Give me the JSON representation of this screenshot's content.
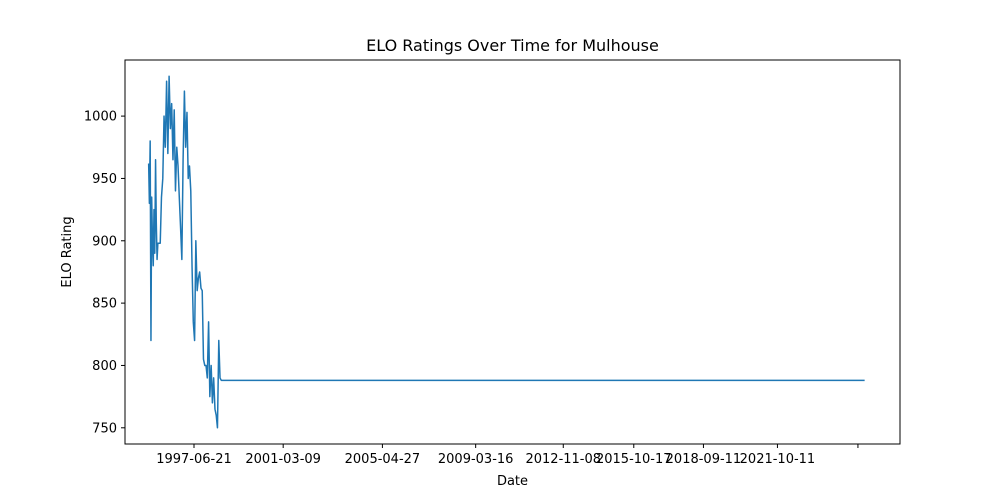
{
  "chart_data": {
    "type": "line",
    "title": "ELO Ratings Over Time for Mulhouse",
    "xlabel": "Date",
    "ylabel": "ELO Rating",
    "x_axis_type": "date",
    "xlim": [
      "1994-08-06",
      "2026-11-19"
    ],
    "ylim": [
      737,
      1045
    ],
    "x_ticks": [
      "1997-06-21",
      "2001-03-09",
      "2005-04-27",
      "2009-03-16",
      "2012-11-08",
      "2015-10-17",
      "2018-09-11",
      "2021-10-11",
      "2025-02-17"
    ],
    "x_tick_labels": [
      "1997-06-21",
      "2001-03-09",
      "2005-04-27",
      "2009-03-16",
      "2012-11-08",
      "2015-10-17",
      "2018-09-11",
      "2021-10-11",
      ""
    ],
    "y_ticks": [
      750,
      800,
      850,
      900,
      950,
      1000
    ],
    "grid": false,
    "legend": "none",
    "series": [
      {
        "color": "#1f77b4",
        "x": [
          "1995-08-01",
          "1995-08-12",
          "1995-08-24",
          "1995-09-05",
          "1995-09-16",
          "1995-09-28",
          "1995-10-10",
          "1995-10-21",
          "1995-11-02",
          "1995-11-14",
          "1995-11-25",
          "1995-12-07",
          "1995-12-19",
          "1996-01-04",
          "1996-01-24",
          "1996-02-12",
          "1996-03-03",
          "1996-03-22",
          "1996-04-10",
          "1996-04-30",
          "1996-05-19",
          "1996-06-07",
          "1996-06-27",
          "1996-07-16",
          "1996-08-05",
          "1996-08-24",
          "1996-09-12",
          "1996-10-02",
          "1996-10-21",
          "1996-11-09",
          "1996-11-29",
          "1996-12-18",
          "1997-01-06",
          "1997-01-26",
          "1997-02-14",
          "1997-03-06",
          "1997-03-25",
          "1997-04-13",
          "1997-05-03",
          "1997-05-22",
          "1997-06-10",
          "1997-06-30",
          "1997-07-19",
          "1997-08-08",
          "1997-08-27",
          "1997-09-15",
          "1997-10-05",
          "1997-10-24",
          "1997-11-12",
          "1997-12-02",
          "1997-12-21",
          "1998-01-09",
          "1998-01-29",
          "1998-02-17",
          "1998-03-09",
          "1998-03-28",
          "1998-04-16",
          "1998-05-06",
          "1998-05-25",
          "1998-06-13",
          "1998-07-03",
          "1998-07-22",
          "1998-08-11",
          "1998-08-30",
          "1998-09-18",
          "1998-10-08",
          "1998-10-27",
          "1998-11-15",
          "1998-12-05",
          "1998-12-24",
          "1999-01-12",
          "1999-02-01",
          "1999-02-20",
          "1999-03-11",
          "1999-03-31",
          "1999-04-19",
          "1999-05-09",
          "1999-05-28",
          "1999-06-16",
          "1999-07-06",
          "1999-07-25",
          "1999-08-13",
          "1999-09-02",
          "1999-09-21",
          "1999-10-11",
          "1999-10-30",
          "2025-05-30"
        ],
        "values": [
          962,
          930,
          980,
          820,
          935,
          900,
          880,
          925,
          890,
          965,
          915,
          885,
          898,
          898,
          898,
          935,
          950,
          1000,
          975,
          1028,
          970,
          1032,
          990,
          1010,
          965,
          1005,
          940,
          975,
          960,
          935,
          910,
          885,
          965,
          1020,
          975,
          1003,
          950,
          960,
          940,
          880,
          835,
          820,
          900,
          860,
          870,
          875,
          862,
          860,
          805,
          800,
          800,
          790,
          835,
          775,
          800,
          770,
          790,
          765,
          760,
          750,
          820,
          790,
          788,
          788,
          788,
          788,
          788,
          788,
          788,
          788,
          788,
          788,
          788,
          788,
          788,
          788,
          788,
          788,
          788,
          788,
          788,
          788,
          788,
          788,
          788,
          788,
          788
        ]
      }
    ]
  }
}
